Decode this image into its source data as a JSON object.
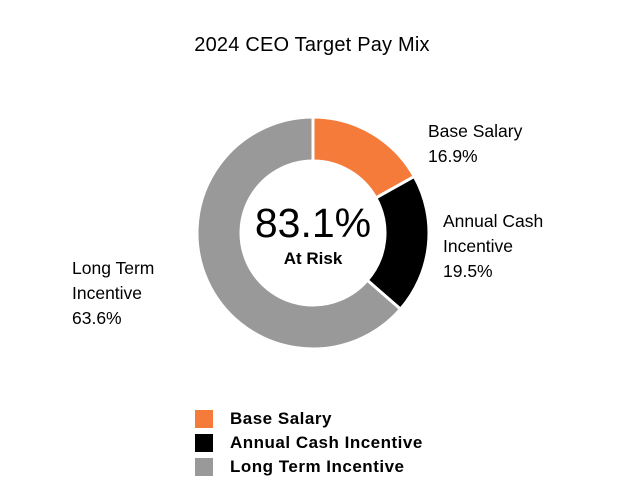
{
  "chart_data": {
    "type": "pie",
    "title": "2024 CEO Target Pay Mix",
    "slices": [
      {
        "label": "Base Salary",
        "label_lines": [
          "Base Salary"
        ],
        "value": 16.9,
        "value_text": "16.9%",
        "color": "#f47b3a"
      },
      {
        "label": "Annual Cash Incentive",
        "label_lines": [
          "Annual Cash",
          "Incentive"
        ],
        "value": 19.5,
        "value_text": "19.5%",
        "color": "#000000"
      },
      {
        "label": "Long Term Incentive",
        "label_lines": [
          "Long Term",
          "Incentive"
        ],
        "value": 63.6,
        "value_text": "63.6%",
        "color": "#999999"
      }
    ],
    "center": {
      "value": "83.1%",
      "label": "At Risk"
    },
    "legend": [
      "Base Salary",
      "Annual Cash Incentive",
      "Long Term Incentive"
    ]
  }
}
